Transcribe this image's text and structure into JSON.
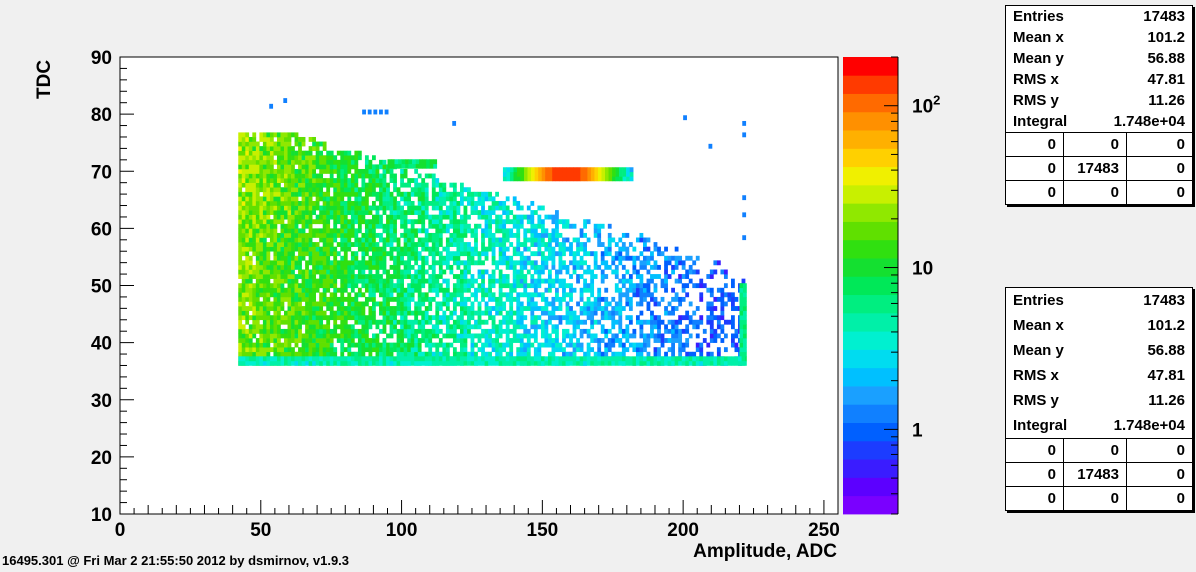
{
  "chart_data": {
    "type": "heatmap",
    "xlabel": "Amplitude, ADC",
    "ylabel": "TDC",
    "xlim": [
      0,
      255
    ],
    "ylim": [
      10,
      90
    ],
    "x_ticks": [
      0,
      50,
      100,
      150,
      200,
      250
    ],
    "y_ticks": [
      10,
      20,
      30,
      40,
      50,
      60,
      70,
      80,
      90
    ],
    "zscale": "log",
    "zlim": [
      0.3,
      200
    ],
    "z_tick_labels": [
      "1",
      "10",
      "10^2"
    ],
    "z_tick_values": [
      1,
      10,
      100
    ],
    "bin_width_x": 1.25,
    "bin_width_y": 0.8,
    "regions": [
      {
        "x": [
          42,
          222
        ],
        "y": [
          36,
          76
        ],
        "description": "bulk band",
        "peak_count": 20
      },
      {
        "x": [
          95,
          112
        ],
        "y": [
          70.5,
          72
        ],
        "description": "narrow stripe",
        "peak_count": 12
      },
      {
        "x": [
          136,
          182
        ],
        "y": [
          68.3,
          70
        ],
        "description": "hot stripe",
        "peak_count": 150
      },
      {
        "x": [
          220,
          222
        ],
        "y": [
          36,
          50
        ],
        "description": "right edge column",
        "peak_count": 8
      },
      {
        "x": [
          42,
          222
        ],
        "y": [
          36,
          37
        ],
        "description": "bottom edge row",
        "peak_count": 6
      }
    ],
    "sparse_points": [
      [
        53,
        81
      ],
      [
        58,
        82
      ],
      [
        86,
        80
      ],
      [
        88,
        80
      ],
      [
        90,
        80
      ],
      [
        92,
        80
      ],
      [
        94,
        80
      ],
      [
        118,
        78
      ],
      [
        200,
        79
      ],
      [
        209,
        74
      ],
      [
        221,
        78
      ],
      [
        221,
        76
      ],
      [
        221,
        65
      ],
      [
        221,
        62
      ],
      [
        221,
        58
      ]
    ],
    "stats": {
      "entries": "17483",
      "mean_x": "101.2",
      "mean_y": "56.88",
      "rms_x": "47.81",
      "rms_y": "11.26",
      "integral": "1.748e+04",
      "grid": [
        [
          "0",
          "0",
          "0"
        ],
        [
          "0",
          "17483",
          "0"
        ],
        [
          "0",
          "0",
          "0"
        ]
      ]
    }
  },
  "stats_labels": {
    "entries": "Entries",
    "mean_x": "Mean x",
    "mean_y": "Mean y",
    "rms_x": "RMS x",
    "rms_y": "RMS y",
    "integral": "Integral"
  },
  "footer_text": "16495.301 @ Fri Mar  2 21:55:50 2012 by dsmirnov, v1.9.3",
  "palette": [
    "#7a00ff",
    "#5c00ff",
    "#3a1cff",
    "#1c3cff",
    "#0060ff",
    "#1080ff",
    "#1aa0ff",
    "#00c0ff",
    "#00dcf0",
    "#00f0d0",
    "#00f0a8",
    "#00ee80",
    "#00e858",
    "#14e030",
    "#30e010",
    "#60e000",
    "#90e800",
    "#c8f000",
    "#f0f000",
    "#ffd000",
    "#ffb000",
    "#ff9000",
    "#ff6a00",
    "#ff3a00",
    "#ff0000"
  ],
  "colors": {
    "canvas": "#f0f0f0",
    "frame": "#000000",
    "stats_bg": "#ffffff"
  }
}
